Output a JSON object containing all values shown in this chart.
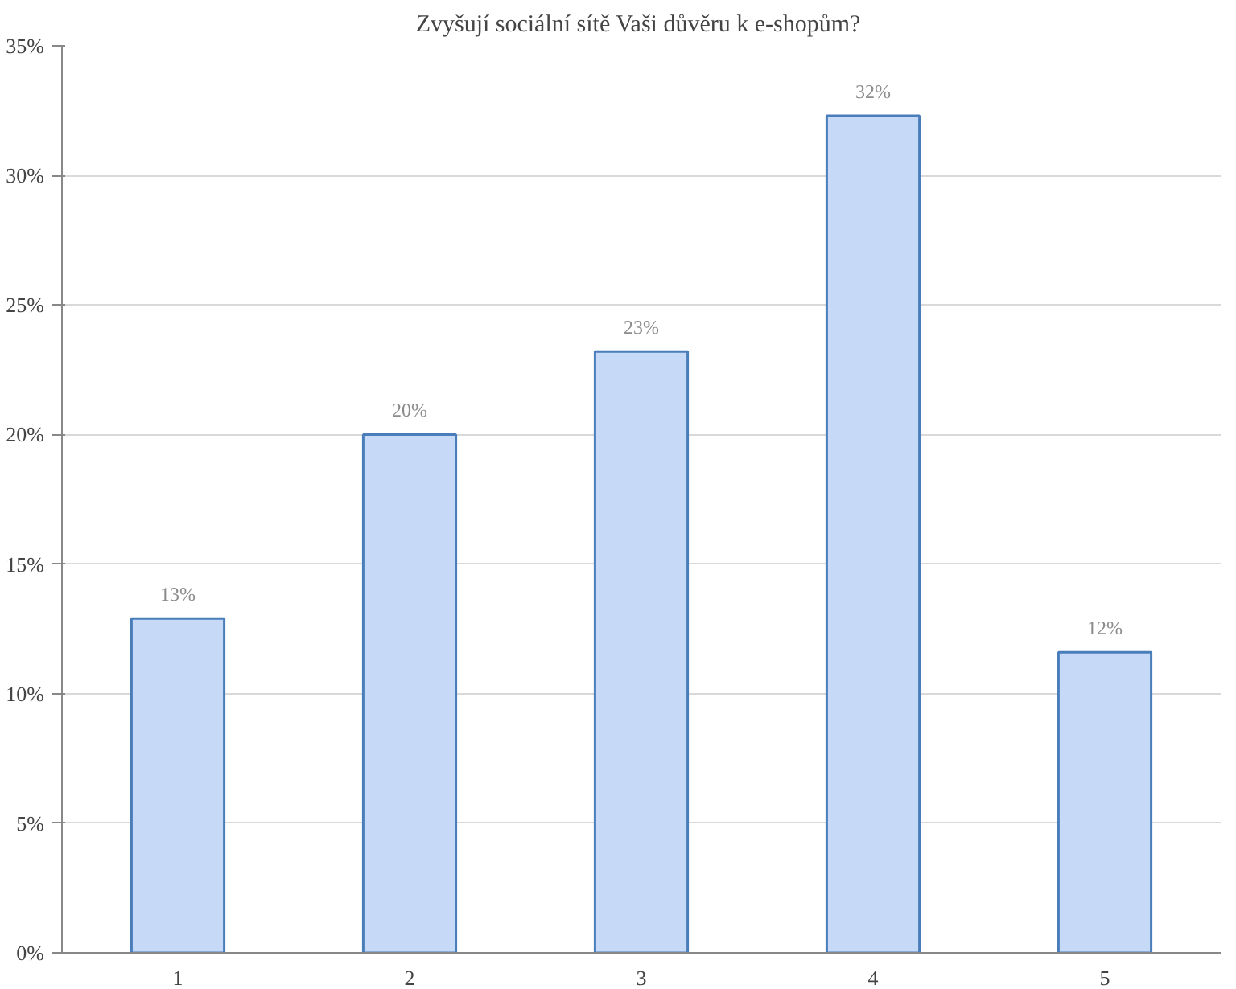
{
  "chart_data": {
    "type": "bar",
    "title": "Zvyšují sociální  sítě Vaši důvěru k e-shopům?",
    "categories": [
      "1",
      "2",
      "3",
      "4",
      "5"
    ],
    "values": [
      12.9,
      20.0,
      23.2,
      32.3,
      11.6
    ],
    "value_labels": [
      "13%",
      "20%",
      "23%",
      "32%",
      "12%"
    ],
    "color": "#c6d9f7",
    "ylim": [
      0,
      35
    ],
    "yticks": [
      {
        "value": 0,
        "label": "0%"
      },
      {
        "value": 5,
        "label": "5%"
      },
      {
        "value": 10,
        "label": "10%"
      },
      {
        "value": 15,
        "label": "15%"
      },
      {
        "value": 20,
        "label": "20%"
      },
      {
        "value": 25,
        "label": "25%"
      },
      {
        "value": 30,
        "label": "30%"
      },
      {
        "value": 35,
        "label": "35%"
      }
    ],
    "grid": "y"
  }
}
